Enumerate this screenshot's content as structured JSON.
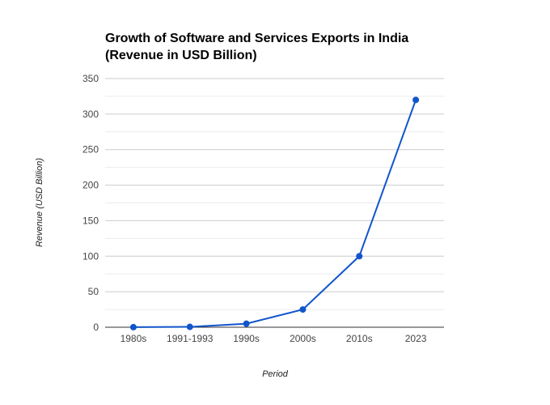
{
  "chart_data": {
    "type": "line",
    "title_line1": "Growth of Software and Services Exports in India",
    "title_line2": "(Revenue in USD Billion)",
    "xlabel": "Period",
    "ylabel": "Revenue (USD Billion)",
    "categories": [
      "1980s",
      "1991-1993",
      "1990s",
      "2000s",
      "2010s",
      "2023"
    ],
    "series": [
      {
        "values": [
          0.1,
          0.5,
          5,
          25,
          100,
          320
        ]
      }
    ],
    "ylim": [
      0,
      350
    ],
    "yticks": [
      0,
      50,
      100,
      150,
      200,
      250,
      300,
      350
    ],
    "grid": true,
    "legend": "none",
    "color": "#1155cc"
  }
}
